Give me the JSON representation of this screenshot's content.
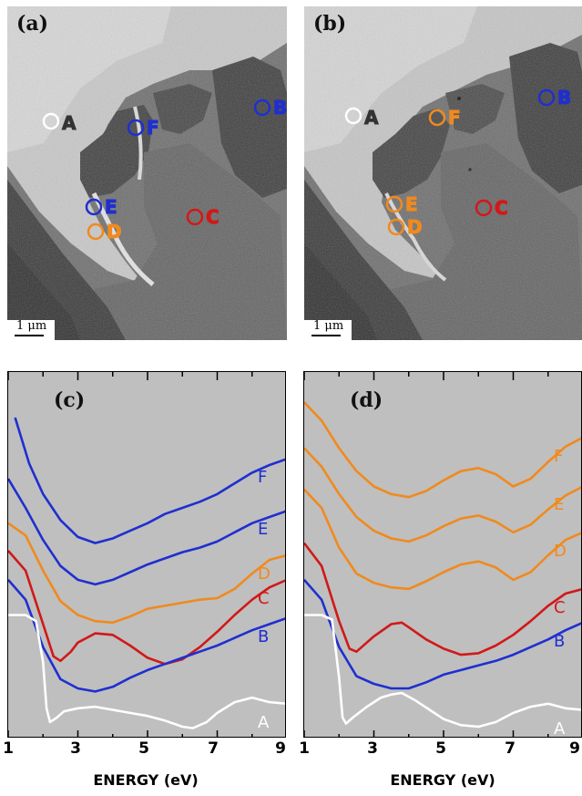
{
  "micrographs": [
    {
      "panel": "(a)",
      "scalebar": "1 μm",
      "markers": [
        {
          "label": "A",
          "color": "#ffffff"
        },
        {
          "label": "B",
          "color": "#1f2fd0"
        },
        {
          "label": "C",
          "color": "#d21818"
        },
        {
          "label": "D",
          "color": "#f08a1e"
        },
        {
          "label": "E",
          "color": "#1f2fd0"
        },
        {
          "label": "F",
          "color": "#1f2fd0"
        }
      ]
    },
    {
      "panel": "(b)",
      "scalebar": "1 μm",
      "markers": [
        {
          "label": "A",
          "color": "#ffffff"
        },
        {
          "label": "B",
          "color": "#1f2fd0"
        },
        {
          "label": "C",
          "color": "#d21818"
        },
        {
          "label": "D",
          "color": "#f08a1e"
        },
        {
          "label": "E",
          "color": "#f08a1e"
        },
        {
          "label": "F",
          "color": "#f08a1e"
        }
      ]
    }
  ],
  "chart_data": [
    {
      "type": "line",
      "panel": "(c)",
      "xlabel": "ENERGY (eV)",
      "xlim": [
        1,
        9
      ],
      "xticks": [
        "1",
        "3",
        "5",
        "7",
        "9"
      ],
      "y_ticks_shown": false,
      "background": "#bfbfbf",
      "series": [
        {
          "name": "F",
          "color": "#1f2fd0",
          "x": [
            1.2,
            1.6,
            2.0,
            2.5,
            3.0,
            3.5,
            4.0,
            4.5,
            5.0,
            5.5,
            6.0,
            6.5,
            7.0,
            7.5,
            8.0,
            8.5,
            9.0
          ],
          "y": [
            20.5,
            17.5,
            15.5,
            13.8,
            12.7,
            12.3,
            12.6,
            13.1,
            13.6,
            14.2,
            14.6,
            15.0,
            15.5,
            16.2,
            16.9,
            17.4,
            17.8
          ]
        },
        {
          "name": "E",
          "color": "#1f2fd0",
          "x": [
            1.0,
            1.5,
            2.0,
            2.5,
            3.0,
            3.5,
            4.0,
            4.5,
            5.0,
            5.5,
            6.0,
            6.5,
            7.0,
            7.5,
            8.0,
            8.5,
            9.0
          ],
          "y": [
            16.5,
            14.6,
            12.5,
            10.8,
            9.9,
            9.6,
            9.9,
            10.4,
            10.9,
            11.3,
            11.7,
            12.0,
            12.4,
            13.0,
            13.6,
            14.0,
            14.4
          ]
        },
        {
          "name": "D",
          "color": "#f08a1e",
          "x": [
            1.0,
            1.5,
            2.0,
            2.5,
            3.0,
            3.5,
            4.0,
            4.5,
            5.0,
            5.5,
            6.0,
            6.5,
            7.0,
            7.5,
            8.0,
            8.5,
            9.0
          ],
          "y": [
            13.6,
            12.8,
            10.5,
            8.5,
            7.6,
            7.2,
            7.1,
            7.5,
            8.0,
            8.2,
            8.4,
            8.6,
            8.7,
            9.3,
            10.3,
            11.2,
            11.5
          ]
        },
        {
          "name": "C",
          "color": "#d21818",
          "x": [
            1.0,
            1.5,
            2.0,
            2.3,
            2.5,
            2.8,
            3.0,
            3.5,
            4.0,
            4.5,
            5.0,
            5.5,
            6.0,
            6.5,
            7.0,
            7.5,
            8.0,
            8.5,
            9.0
          ],
          "y": [
            11.8,
            10.5,
            7.0,
            4.9,
            4.6,
            5.2,
            5.8,
            6.4,
            6.3,
            5.6,
            4.8,
            4.4,
            4.7,
            5.5,
            6.5,
            7.6,
            8.6,
            9.4,
            9.9
          ]
        },
        {
          "name": "B",
          "color": "#1f2fd0",
          "x": [
            1.0,
            1.5,
            2.0,
            2.5,
            3.0,
            3.5,
            4.0,
            4.5,
            5.0,
            5.5,
            6.0,
            6.5,
            7.0,
            7.5,
            8.0,
            8.5,
            9.0
          ],
          "y": [
            9.9,
            8.6,
            5.5,
            3.4,
            2.8,
            2.6,
            2.9,
            3.5,
            4.0,
            4.4,
            4.8,
            5.2,
            5.6,
            6.1,
            6.6,
            7.0,
            7.4
          ]
        },
        {
          "name": "A",
          "color": "#ffffff",
          "x": [
            1.0,
            1.5,
            1.8,
            2.0,
            2.1,
            2.2,
            2.4,
            2.6,
            3.0,
            3.5,
            4.0,
            4.5,
            5.0,
            5.5,
            6.0,
            6.3,
            6.7,
            7.0,
            7.5,
            8.0,
            8.5,
            9.0
          ],
          "y": [
            7.6,
            7.6,
            7.2,
            4.5,
            1.5,
            0.6,
            0.9,
            1.3,
            1.5,
            1.6,
            1.4,
            1.2,
            1.0,
            0.7,
            0.3,
            0.2,
            0.6,
            1.2,
            1.9,
            2.2,
            1.9,
            1.8
          ]
        }
      ]
    },
    {
      "type": "line",
      "panel": "(d)",
      "xlabel": "ENERGY (eV)",
      "xlim": [
        1,
        9
      ],
      "xticks": [
        "1",
        "3",
        "5",
        "7",
        "9"
      ],
      "y_ticks_shown": false,
      "background": "#bfbfbf",
      "series": [
        {
          "name": "F",
          "color": "#f08a1e",
          "x": [
            1.0,
            1.5,
            2.0,
            2.5,
            3.0,
            3.5,
            4.0,
            4.5,
            5.0,
            5.5,
            6.0,
            6.5,
            7.0,
            7.5,
            8.0,
            8.5,
            9.0
          ],
          "y": [
            21.5,
            20.3,
            18.5,
            17.0,
            16.0,
            15.5,
            15.3,
            15.7,
            16.4,
            17.0,
            17.2,
            16.8,
            16.0,
            16.5,
            17.6,
            18.6,
            19.2
          ]
        },
        {
          "name": "E",
          "color": "#f08a1e",
          "x": [
            1.0,
            1.5,
            2.0,
            2.5,
            3.0,
            3.5,
            4.0,
            4.5,
            5.0,
            5.5,
            6.0,
            6.5,
            7.0,
            7.5,
            8.0,
            8.5,
            9.0
          ],
          "y": [
            18.5,
            17.3,
            15.5,
            14.0,
            13.1,
            12.6,
            12.4,
            12.8,
            13.4,
            13.9,
            14.1,
            13.7,
            13.0,
            13.5,
            14.5,
            15.4,
            16.0
          ]
        },
        {
          "name": "D",
          "color": "#f08a1e",
          "x": [
            1.0,
            1.5,
            2.0,
            2.5,
            3.0,
            3.5,
            4.0,
            4.5,
            5.0,
            5.5,
            6.0,
            6.5,
            7.0,
            7.5,
            8.0,
            8.5,
            9.0
          ],
          "y": [
            15.8,
            14.6,
            12.0,
            10.3,
            9.7,
            9.4,
            9.3,
            9.8,
            10.4,
            10.9,
            11.1,
            10.7,
            9.9,
            10.4,
            11.5,
            12.5,
            13.0
          ]
        },
        {
          "name": "C",
          "color": "#d21818",
          "x": [
            1.0,
            1.5,
            2.0,
            2.3,
            2.5,
            3.0,
            3.5,
            3.8,
            4.0,
            4.5,
            5.0,
            5.5,
            6.0,
            6.5,
            7.0,
            7.5,
            8.0,
            8.5,
            9.0
          ],
          "y": [
            12.3,
            10.8,
            7.2,
            5.4,
            5.2,
            6.2,
            7.0,
            7.1,
            6.8,
            6.0,
            5.4,
            5.0,
            5.1,
            5.6,
            6.3,
            7.2,
            8.2,
            9.0,
            9.3
          ]
        },
        {
          "name": "B",
          "color": "#1f2fd0",
          "x": [
            1.0,
            1.5,
            2.0,
            2.5,
            3.0,
            3.5,
            4.0,
            4.5,
            5.0,
            5.5,
            6.0,
            6.5,
            7.0,
            7.5,
            8.0,
            8.5,
            9.0
          ],
          "y": [
            9.9,
            8.6,
            5.5,
            3.6,
            3.1,
            2.8,
            2.8,
            3.2,
            3.7,
            4.0,
            4.3,
            4.6,
            5.0,
            5.5,
            6.0,
            6.6,
            7.1
          ]
        },
        {
          "name": "A",
          "color": "#ffffff",
          "x": [
            1.0,
            1.5,
            1.8,
            2.0,
            2.1,
            2.2,
            2.4,
            2.8,
            3.2,
            3.5,
            3.8,
            4.2,
            4.6,
            5.0,
            5.5,
            6.0,
            6.5,
            7.0,
            7.5,
            8.0,
            8.5,
            9.0
          ],
          "y": [
            7.6,
            7.6,
            7.3,
            3.5,
            0.9,
            0.5,
            0.9,
            1.6,
            2.2,
            2.4,
            2.5,
            2.0,
            1.4,
            0.8,
            0.4,
            0.3,
            0.6,
            1.2,
            1.6,
            1.8,
            1.5,
            1.4
          ]
        }
      ]
    }
  ]
}
